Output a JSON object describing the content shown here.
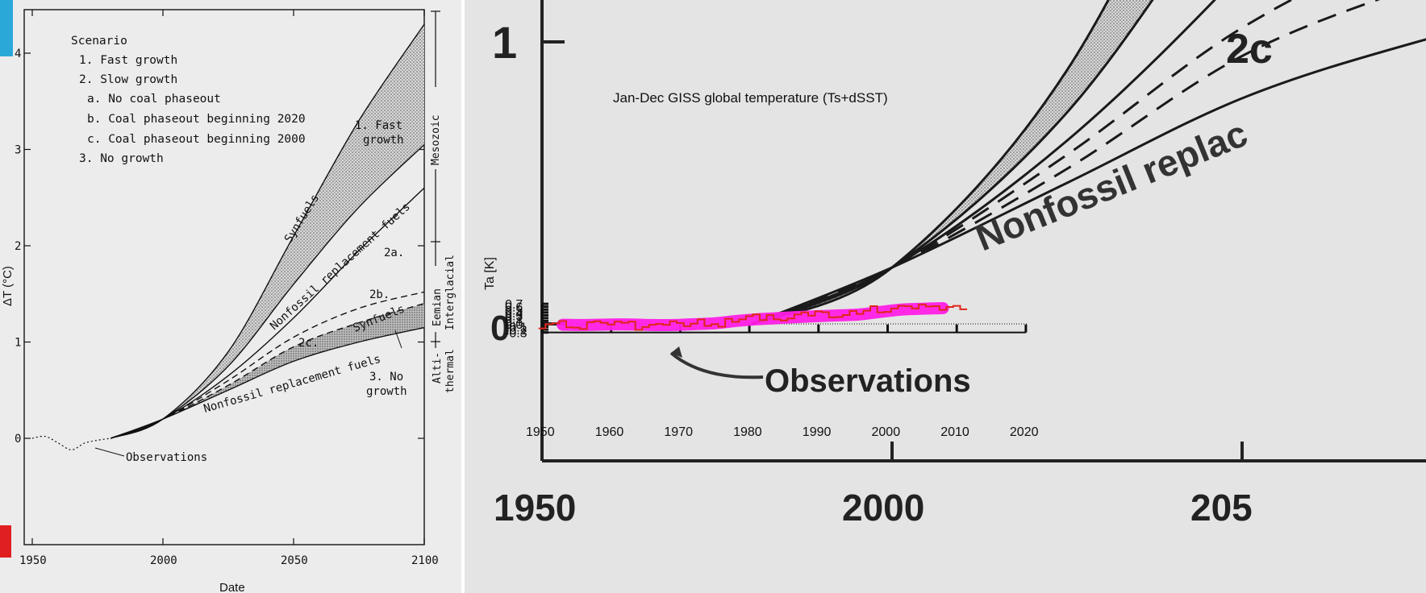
{
  "left_panel": {
    "yaxis_label": "ΔT (°C)",
    "xaxis_label": "Date",
    "legend_heading": "Scenario",
    "legend_items": [
      "1. Fast growth",
      "2. Slow growth",
      "a. No coal phaseout",
      "b. Coal phaseout beginning 2020",
      "c. Coal phaseout beginning 2000",
      "3. No growth"
    ],
    "annotations": {
      "fast_growth_line1": "1. Fast",
      "fast_growth_line2": "growth",
      "synfuels_upper": "Synfuels",
      "nonfossil_upper": "Nonfossil replacement fuels",
      "label_2a": "2a.",
      "label_2b": "2b.",
      "label_2c": "2c.",
      "synfuels_lower": "Synfuels",
      "nonfossil_lower": "Nonfossil replacement fuels",
      "no_growth_line1": "3. No",
      "no_growth_line2": "growth",
      "observations": "Observations"
    },
    "eras": {
      "mesozoic": "Mesozoic",
      "eemian_line1": "Eemian",
      "eemian_line2": "Interglacial",
      "alti_line1": "Alti-",
      "alti_line2": "thermal"
    }
  },
  "right_panel": {
    "overlay_title": "Jan-Dec  GISS global temperature (Ts+dSST)",
    "overlay_ylabel": "Ta [K]",
    "big_observations": "Observations",
    "big_nonfossil": "Nonfossil replac",
    "big_label_2": "2c",
    "big_y_one": "1",
    "big_y_zero": "0",
    "big_x": [
      "1950",
      "2000",
      "205"
    ]
  },
  "chart_data": [
    {
      "type": "line",
      "title": "",
      "xlabel": "Date",
      "ylabel": "ΔT (°C)",
      "xlim": [
        1950,
        2100
      ],
      "ylim": [
        -0.5,
        4.4
      ],
      "xticks": [
        1950,
        2000,
        2050,
        2100
      ],
      "yticks": [
        0,
        1,
        2,
        3,
        4
      ],
      "x": [
        1980,
        2000,
        2025,
        2050,
        2075,
        2100
      ],
      "series": [
        {
          "name": "1. Fast growth",
          "values": [
            0,
            0.2,
            0.9,
            2.1,
            3.3,
            4.3
          ]
        },
        {
          "name": "",
          "values": [
            0,
            0.2,
            0.75,
            1.6,
            2.4,
            3.05
          ]
        },
        {
          "name": "2a.",
          "values": [
            0,
            0.2,
            0.65,
            1.25,
            1.95,
            2.6
          ]
        },
        {
          "name": "2b.",
          "values": [
            0,
            0.2,
            0.6,
            1.05,
            1.35,
            1.52
          ]
        },
        {
          "name": "2c.",
          "values": [
            0,
            0.2,
            0.55,
            0.95,
            1.2,
            1.4
          ]
        },
        {
          "name": "3. No growth",
          "values": [
            0,
            0.2,
            0.5,
            0.8,
            1.0,
            1.15
          ]
        }
      ],
      "observations": {
        "x": [
          1950,
          1955,
          1960,
          1965,
          1970,
          1975,
          1980
        ],
        "values": [
          0,
          0.02,
          -0.05,
          -0.12,
          -0.05,
          -0.02,
          0
        ]
      }
    },
    {
      "type": "line",
      "title": "Jan-Dec  GISS global temperature (Ts+dSST)",
      "xlabel": "",
      "ylabel": "Ta [K]",
      "xlim": [
        1950,
        2020
      ],
      "ylim": [
        -0.3,
        0.7
      ],
      "xticks": [
        1950,
        1960,
        1970,
        1980,
        1990,
        2000,
        2010,
        2020
      ],
      "yticks": [
        -0.3,
        -0.2,
        -0.1,
        0,
        0.1,
        0.2,
        0.3,
        0.4,
        0.5,
        0.6,
        0.7
      ],
      "annual": {
        "x": [
          1950,
          1951,
          1952,
          1953,
          1954,
          1955,
          1956,
          1957,
          1958,
          1959,
          1960,
          1961,
          1962,
          1963,
          1964,
          1965,
          1966,
          1967,
          1968,
          1969,
          1970,
          1971,
          1972,
          1973,
          1974,
          1975,
          1976,
          1977,
          1978,
          1979,
          1980,
          1981,
          1982,
          1983,
          1984,
          1985,
          1986,
          1987,
          1988,
          1989,
          1990,
          1991,
          1992,
          1993,
          1994,
          1995,
          1996,
          1997,
          1998,
          1999,
          2000,
          2001,
          2002,
          2003,
          2004,
          2005,
          2006,
          2007,
          2008,
          2009,
          2010,
          2011
        ],
        "values": [
          -0.16,
          -0.01,
          0.02,
          0.1,
          -0.12,
          -0.13,
          -0.18,
          0.06,
          0.09,
          0.04,
          -0.02,
          0.08,
          0.04,
          0.08,
          -0.21,
          -0.11,
          -0.03,
          0.0,
          -0.03,
          0.09,
          0.03,
          -0.08,
          0.01,
          0.16,
          -0.07,
          -0.01,
          -0.1,
          0.18,
          0.07,
          0.16,
          0.27,
          0.33,
          0.13,
          0.31,
          0.16,
          0.12,
          0.19,
          0.33,
          0.4,
          0.29,
          0.44,
          0.41,
          0.23,
          0.24,
          0.31,
          0.45,
          0.35,
          0.46,
          0.62,
          0.4,
          0.42,
          0.54,
          0.63,
          0.62,
          0.54,
          0.68,
          0.61,
          0.62,
          0.49,
          0.59,
          0.63,
          0.51
        ]
      },
      "smoothed": {
        "x": [
          1953,
          1956,
          1960,
          1963,
          1966,
          1969,
          1972,
          1975,
          1978,
          1981,
          1984,
          1987,
          1990,
          1993,
          1996,
          1999,
          2002,
          2005,
          2008
        ],
        "values": [
          -0.03,
          -0.04,
          -0.02,
          -0.02,
          -0.04,
          -0.04,
          -0.01,
          0.02,
          0.1,
          0.16,
          0.2,
          0.24,
          0.27,
          0.3,
          0.33,
          0.42,
          0.5,
          0.53,
          0.55
        ]
      }
    }
  ]
}
